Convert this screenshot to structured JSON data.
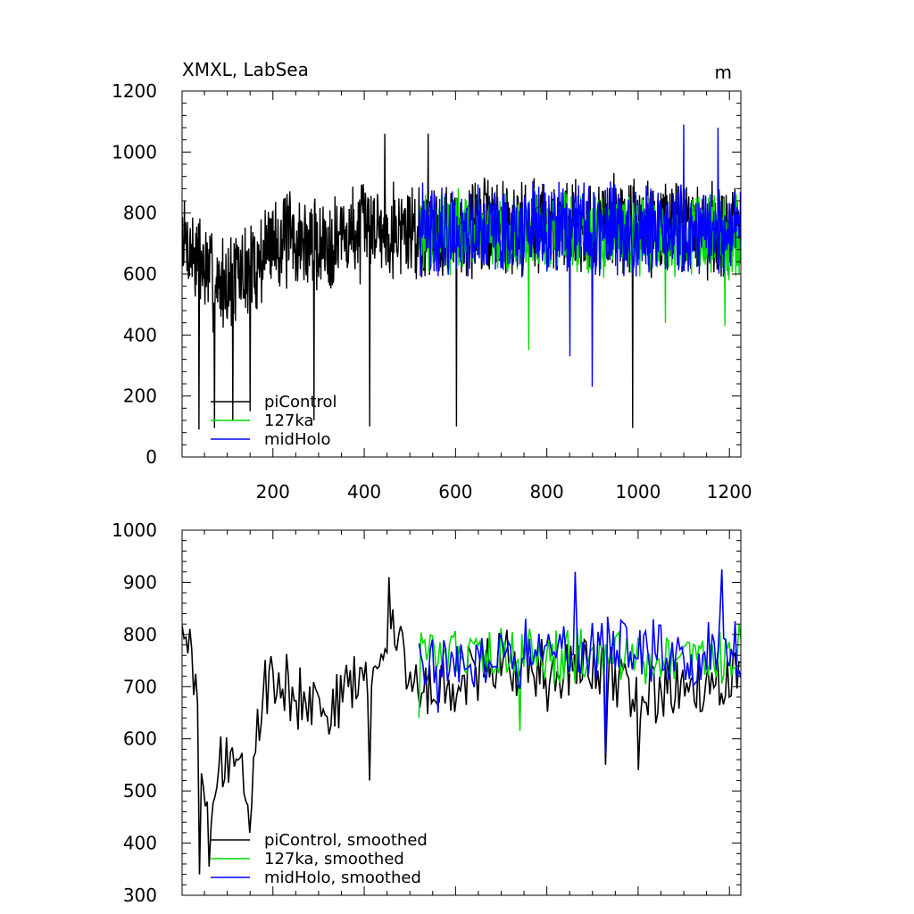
{
  "chart_data": [
    {
      "type": "line",
      "title": "XMXL, LabSea",
      "unit_label": "m",
      "xlim": [
        1,
        1225
      ],
      "ylim": [
        0,
        1200
      ],
      "x_ticks": [
        200,
        400,
        600,
        800,
        1000,
        1200
      ],
      "y_ticks": [
        0,
        200,
        400,
        600,
        800,
        1000,
        1200
      ],
      "grid": false,
      "legend_position": "bottom-left",
      "legend": [
        "piControl",
        "127ka",
        "midHolo"
      ],
      "series": [
        {
          "name": "piControl",
          "color": "#000000",
          "x_start": 1,
          "x_end": 1225,
          "n": 1225,
          "base": [
            [
              0,
              720
            ],
            [
              80,
              560
            ],
            [
              160,
              620
            ],
            [
              200,
              720
            ],
            [
              300,
              690
            ],
            [
              420,
              760
            ],
            [
              520,
              740
            ],
            [
              700,
              760
            ],
            [
              1000,
              760
            ],
            [
              1225,
              740
            ]
          ],
          "amp": 135,
          "spikes": [
            [
              38,
              90
            ],
            [
              72,
              95
            ],
            [
              112,
              120
            ],
            [
              150,
              150
            ],
            [
              412,
              100
            ],
            [
              602,
              100
            ],
            [
              988,
              95
            ],
            [
              290,
              120
            ],
            [
              540,
              1060
            ],
            [
              445,
              1060
            ]
          ]
        },
        {
          "name": "127ka",
          "color": "#00dd00",
          "x_start": 520,
          "x_end": 1225,
          "n": 705,
          "base": [
            [
              520,
              740
            ],
            [
              1225,
              720
            ]
          ],
          "amp": 110,
          "spikes": [
            [
              760,
              350
            ],
            [
              1060,
              440
            ],
            [
              1190,
              430
            ]
          ]
        },
        {
          "name": "midHolo",
          "color": "#0000ff",
          "x_start": 520,
          "x_end": 1225,
          "n": 705,
          "base": [
            [
              520,
              740
            ],
            [
              1225,
              740
            ]
          ],
          "amp": 125,
          "spikes": [
            [
              900,
              230
            ],
            [
              1100,
              1090
            ],
            [
              1175,
              1080
            ],
            [
              850,
              330
            ]
          ]
        }
      ]
    },
    {
      "type": "line",
      "xlim": [
        1,
        1225
      ],
      "ylim": [
        300,
        1000
      ],
      "x_ticks": [
        200,
        400,
        600,
        800,
        1000,
        1200
      ],
      "y_ticks": [
        300,
        400,
        500,
        600,
        700,
        800,
        900,
        1000
      ],
      "grid": false,
      "legend_position": "bottom-left",
      "legend": [
        "piControl, smoothed",
        "127ka, smoothed",
        "midHolo, smoothed"
      ],
      "series": [
        {
          "name": "piControl, smoothed",
          "color": "#000000",
          "x_start": 1,
          "x_end": 1225,
          "n": 290,
          "base": [
            [
              0,
              800
            ],
            [
              20,
              780
            ],
            [
              40,
              560
            ],
            [
              60,
              480
            ],
            [
              90,
              560
            ],
            [
              120,
              560
            ],
            [
              150,
              500
            ],
            [
              180,
              700
            ],
            [
              240,
              690
            ],
            [
              320,
              660
            ],
            [
              430,
              740
            ],
            [
              460,
              820
            ],
            [
              500,
              720
            ],
            [
              540,
              690
            ],
            [
              700,
              760
            ],
            [
              800,
              720
            ],
            [
              900,
              740
            ],
            [
              1000,
              690
            ],
            [
              1225,
              720
            ]
          ],
          "amp": 55,
          "spikes": [
            [
              40,
              340
            ],
            [
              62,
              355
            ],
            [
              150,
              420
            ],
            [
              455,
              910
            ],
            [
              412,
              520
            ],
            [
              1000,
              540
            ],
            [
              930,
              550
            ]
          ]
        },
        {
          "name": "127ka, smoothed",
          "color": "#00dd00",
          "x_start": 520,
          "x_end": 1225,
          "n": 170,
          "base": [
            [
              520,
              760
            ],
            [
              1225,
              760
            ]
          ],
          "amp": 45,
          "spikes": [
            [
              520,
              640
            ],
            [
              740,
              615
            ],
            [
              1220,
              820
            ]
          ]
        },
        {
          "name": "midHolo, smoothed",
          "color": "#0000ff",
          "x_start": 520,
          "x_end": 1225,
          "n": 170,
          "base": [
            [
              520,
              760
            ],
            [
              1225,
              770
            ]
          ],
          "amp": 55,
          "spikes": [
            [
              862,
              920
            ],
            [
              1182,
              925
            ],
            [
              930,
              570
            ],
            [
              560,
              650
            ]
          ]
        }
      ]
    }
  ]
}
